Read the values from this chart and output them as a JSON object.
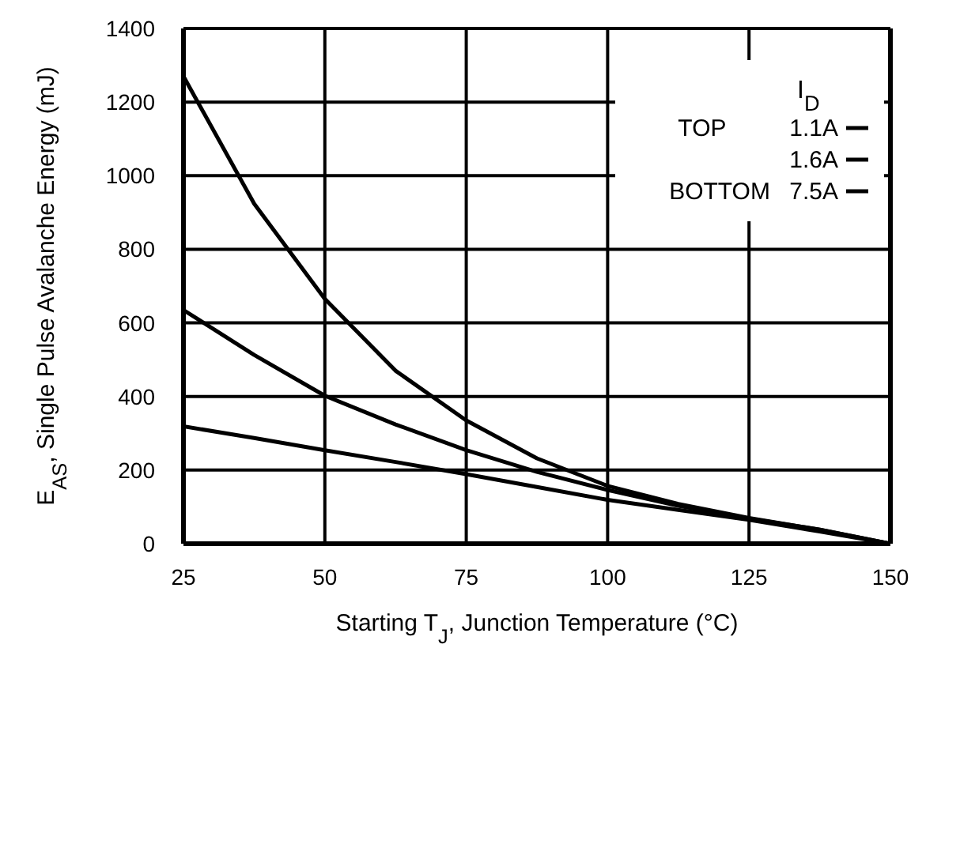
{
  "chart_data": {
    "type": "line",
    "xlabel": "Starting T$_{J}$, Junction Temperature (°C)",
    "ylabel": "E$_{AS}$, Single Pulse Avalanche Energy (mJ)",
    "legend_title": "I$_{D}$",
    "x": [
      25,
      37.5,
      50,
      62.5,
      75,
      87.5,
      100,
      112.5,
      125,
      137.5,
      150
    ],
    "series": [
      {
        "name": "TOP 1.1A",
        "color": "#000000",
        "values": [
          1270,
          924,
          665,
          470,
          335,
          232,
          157,
          108,
          70,
          38,
          0
        ]
      },
      {
        "name": "1.6A",
        "color": "#000000",
        "values": [
          635,
          513,
          402,
          324,
          254,
          195,
          146,
          103,
          68,
          38,
          0
        ]
      },
      {
        "name": "BOTTOM 7.5A",
        "color": "#000000",
        "values": [
          319,
          287,
          254,
          222,
          189,
          154,
          119,
          92,
          65,
          33,
          0
        ]
      }
    ],
    "xlim": [
      25,
      150
    ],
    "xticks": [
      25,
      50,
      75,
      100,
      125,
      150
    ],
    "ylim": [
      0,
      1400
    ],
    "yticks": [
      0,
      200,
      400,
      600,
      800,
      1000,
      1200,
      1400
    ],
    "grid": true,
    "legend": "top right",
    "marker": "none",
    "line_style": "solid"
  }
}
